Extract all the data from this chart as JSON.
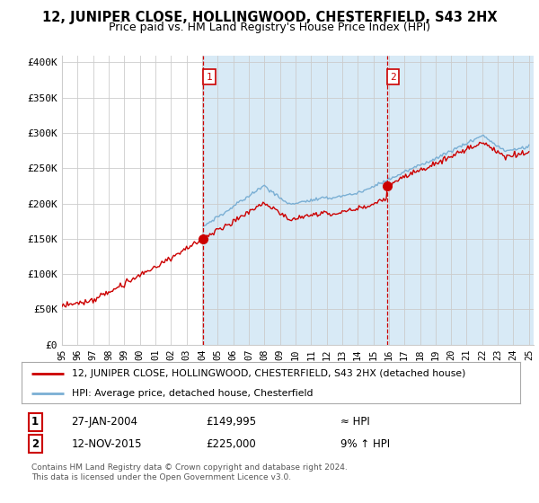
{
  "title": "12, JUNIPER CLOSE, HOLLINGWOOD, CHESTERFIELD, S43 2HX",
  "subtitle": "Price paid vs. HM Land Registry's House Price Index (HPI)",
  "ylabel_ticks": [
    "£0",
    "£50K",
    "£100K",
    "£150K",
    "£200K",
    "£250K",
    "£300K",
    "£350K",
    "£400K"
  ],
  "ytick_vals": [
    0,
    50000,
    100000,
    150000,
    200000,
    250000,
    300000,
    350000,
    400000
  ],
  "ylim": [
    0,
    410000
  ],
  "xlim_start": 1995.0,
  "xlim_end": 2025.3,
  "purchase1_x": 2004.07,
  "purchase1_y": 149995,
  "purchase1_label": "1",
  "purchase2_x": 2015.87,
  "purchase2_y": 225000,
  "purchase2_label": "2",
  "red_color": "#cc0000",
  "blue_color": "#7aafd4",
  "shade_color": "#d8eaf6",
  "legend_label1": "12, JUNIPER CLOSE, HOLLINGWOOD, CHESTERFIELD, S43 2HX (detached house)",
  "legend_label2": "HPI: Average price, detached house, Chesterfield",
  "table_row1": [
    "1",
    "27-JAN-2004",
    "£149,995",
    "≈ HPI"
  ],
  "table_row2": [
    "2",
    "12-NOV-2015",
    "£225,000",
    "9% ↑ HPI"
  ],
  "footnote1": "Contains HM Land Registry data © Crown copyright and database right 2024.",
  "footnote2": "This data is licensed under the Open Government Licence v3.0.",
  "bg_color": "#ffffff",
  "grid_color": "#cccccc",
  "title_fontsize": 10.5,
  "subtitle_fontsize": 9.0
}
